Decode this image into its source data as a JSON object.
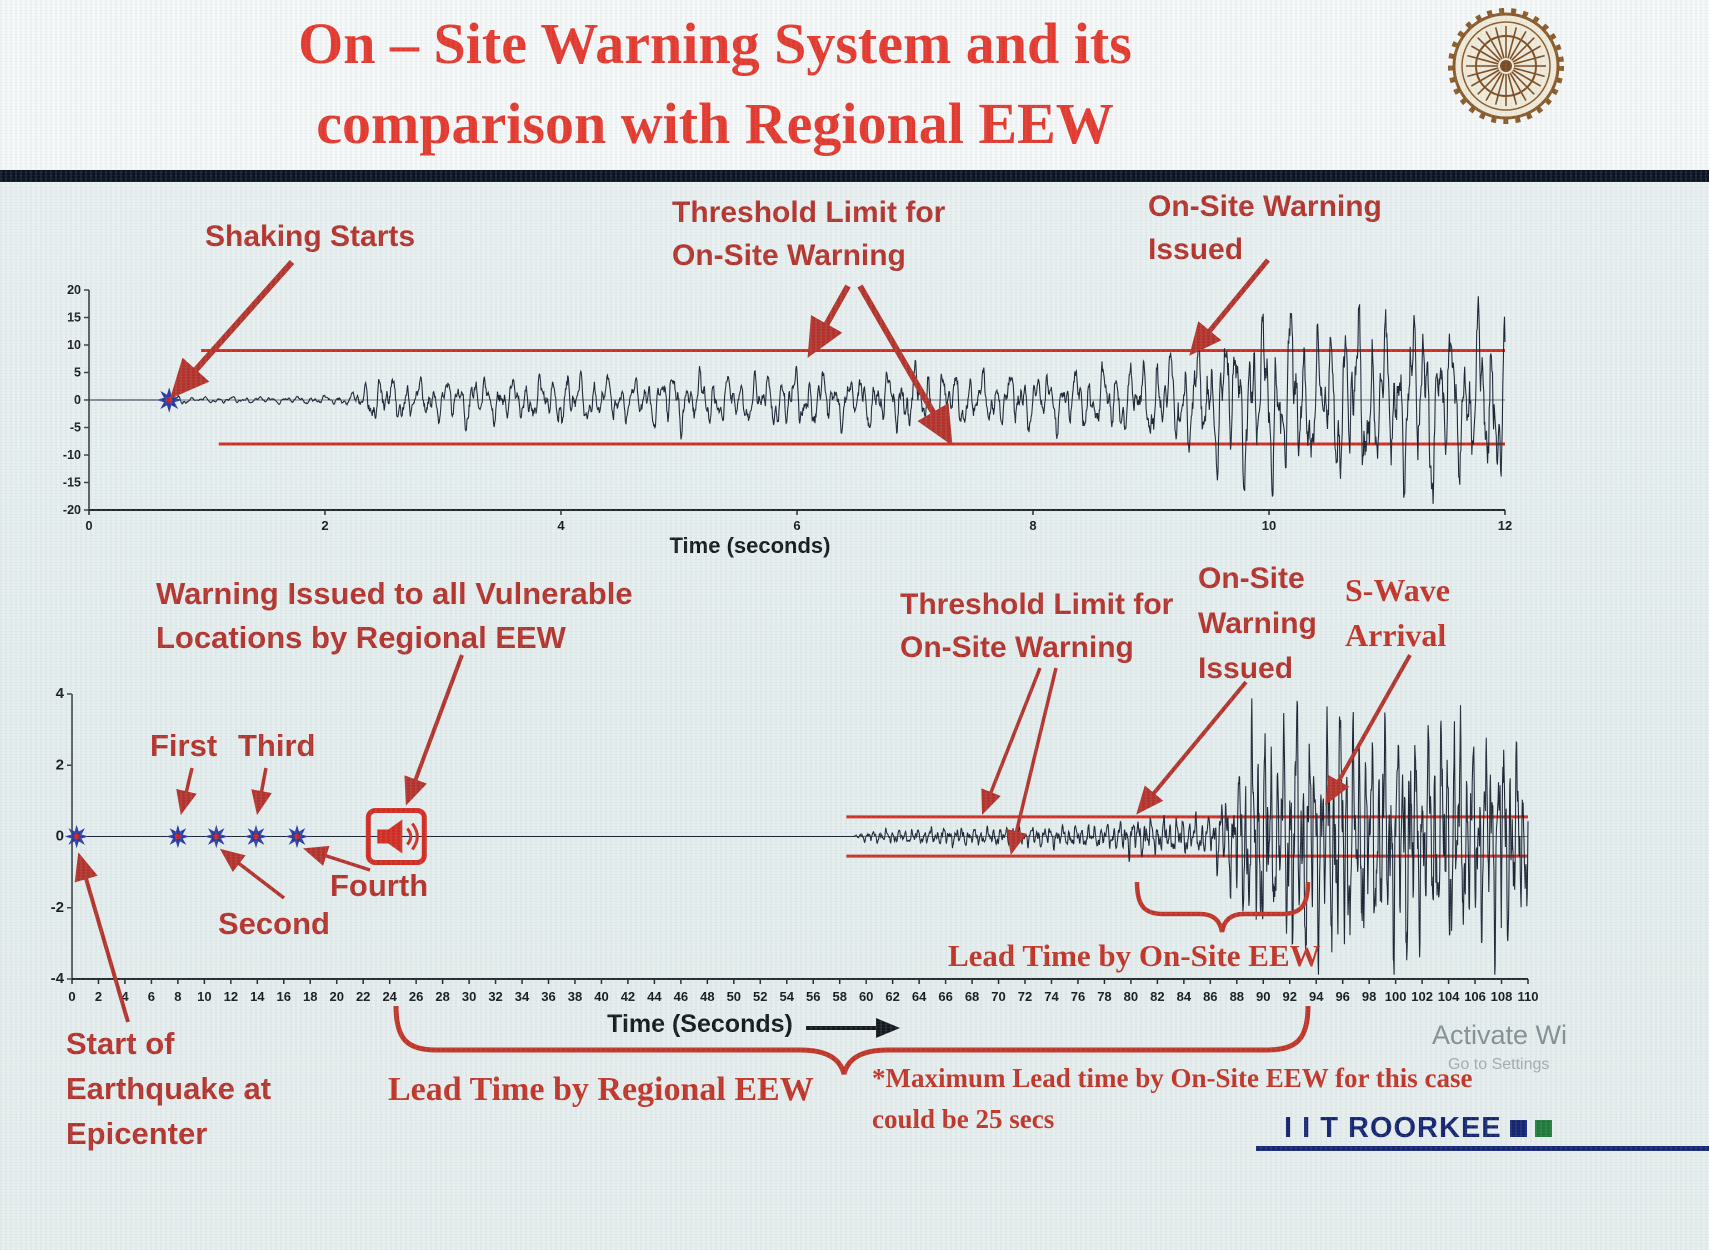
{
  "slide": {
    "title_line1": "On – Site Warning System and its",
    "title_line2": "comparison with Regional EEW",
    "brand": "I I T ROORKEE",
    "watermark_line1": "Activate Wi",
    "watermark_line2": "Go to Settings"
  },
  "annotations_top": {
    "shaking_starts": "Shaking Starts",
    "threshold_line1": "Threshold Limit for",
    "threshold_line2": "On-Site Warning",
    "warning_issued_line1": "On-Site Warning",
    "warning_issued_line2": "Issued"
  },
  "annotations_bottom": {
    "regional_warning_line1": "Warning Issued to all Vulnerable",
    "regional_warning_line2": "Locations by Regional EEW",
    "first": "First",
    "second": "Second",
    "third": "Third",
    "fourth": "Fourth",
    "threshold_line1": "Threshold Limit for",
    "threshold_line2": "On-Site Warning",
    "onsite_line1": "On-Site",
    "onsite_line2": "Warning",
    "onsite_line3": "Issued",
    "swave_line1": "S-Wave",
    "swave_line2": "Arrival",
    "lead_onsite": "Lead Time by On-Site EEW",
    "lead_regional": "Lead Time by Regional EEW",
    "max_lead_line1": "*Maximum Lead time by On-Site EEW for this case",
    "max_lead_line2": "could be 25 secs",
    "start_line1": "Start of",
    "start_line2": "Earthquake at",
    "start_line3": "Epicenter"
  },
  "colors": {
    "title_red": "#e5372b",
    "annotation_red": "#b5322a",
    "threshold_red": "#d42b20",
    "trace_navy": "#1b2433",
    "brand_navy": "#15246f",
    "brand_green": "#1f7a3a",
    "logo_brown": "#8a5a28"
  },
  "chart_data": [
    {
      "type": "line",
      "title": "",
      "xlabel": "Time (seconds)",
      "ylabel": "",
      "xlim": [
        0,
        12
      ],
      "ylim": [
        -20,
        20
      ],
      "xtick_step": 2,
      "ytick_step": 5,
      "grid": false,
      "legend": "none",
      "line_color": "#1b2433",
      "threshold_color": "#d42b20",
      "marker_color": "#2a3aa0",
      "marker_center_color": "#cc2020",
      "base_freq": 8.8,
      "samples": 2600,
      "seed": 42,
      "envelope": [
        [
          0,
          0
        ],
        [
          0.66,
          0
        ],
        [
          0.7,
          1.3
        ],
        [
          0.85,
          0.5
        ],
        [
          1.5,
          0.55
        ],
        [
          2.2,
          0.8
        ],
        [
          2.45,
          4.2
        ],
        [
          2.8,
          3.1
        ],
        [
          3.2,
          4.4
        ],
        [
          3.6,
          3.3
        ],
        [
          4.1,
          4.5
        ],
        [
          4.6,
          3.5
        ],
        [
          5,
          5
        ],
        [
          5.5,
          3.9
        ],
        [
          6,
          5.2
        ],
        [
          6.5,
          4.1
        ],
        [
          7,
          5.4
        ],
        [
          7.5,
          4.4
        ],
        [
          8,
          4.8
        ],
        [
          8.5,
          5.2
        ],
        [
          8.9,
          6.2
        ],
        [
          9.2,
          7.8
        ],
        [
          9.5,
          10.5
        ],
        [
          9.8,
          13.5
        ],
        [
          10.1,
          15.5
        ],
        [
          10.4,
          11
        ],
        [
          10.7,
          16
        ],
        [
          11,
          12.5
        ],
        [
          11.3,
          16.5
        ],
        [
          11.6,
          12
        ],
        [
          11.9,
          15.5
        ],
        [
          12,
          14
        ]
      ],
      "thresholds": [
        {
          "y": 9,
          "x0": 0.95,
          "x1": 12
        },
        {
          "y": -8,
          "x0": 1.1,
          "x1": 12
        }
      ],
      "markers": [
        {
          "x": 0.68,
          "y": 0,
          "size": 11,
          "meaning": "shaking starts (P-wave detection)"
        }
      ]
    },
    {
      "type": "line",
      "title": "",
      "xlabel": "Time (Seconds)",
      "ylabel": "",
      "xlim": [
        0,
        110
      ],
      "ylim": [
        -4,
        4
      ],
      "xtick_step": 2,
      "ytick_step": 2,
      "grid": false,
      "legend": "none",
      "line_color": "#1b2433",
      "threshold_color": "#d42b20",
      "marker_color": "#2a3aa0",
      "marker_center_color": "#cc2020",
      "base_freq": 2.1,
      "samples": 3600,
      "seed": 7,
      "envelope": [
        [
          0,
          0
        ],
        [
          59,
          0
        ],
        [
          60,
          0.15
        ],
        [
          66,
          0.22
        ],
        [
          72,
          0.25
        ],
        [
          78,
          0.3
        ],
        [
          80,
          0.5
        ],
        [
          82,
          0.45
        ],
        [
          84,
          0.5
        ],
        [
          86,
          0.55
        ],
        [
          88,
          1.6
        ],
        [
          89.5,
          3.2
        ],
        [
          91,
          2.3
        ],
        [
          92.5,
          3.5
        ],
        [
          94,
          2.7
        ],
        [
          96,
          3.3
        ],
        [
          98,
          2.5
        ],
        [
          100,
          3.2
        ],
        [
          102,
          2.6
        ],
        [
          104,
          3
        ],
        [
          106,
          2.4
        ],
        [
          108,
          2.9
        ],
        [
          110,
          2.1
        ]
      ],
      "thresholds": [
        {
          "y": 0.55,
          "x0": 58.5,
          "x1": 110
        },
        {
          "y": -0.55,
          "x0": 58.5,
          "x1": 110
        }
      ],
      "markers": [
        {
          "x": 0.35,
          "y": 0,
          "size": 10,
          "meaning": "start of earthquake at epicenter"
        },
        {
          "x": 8,
          "y": 0,
          "size": 10,
          "meaning": "first station P-wave detection"
        },
        {
          "x": 10.9,
          "y": 0,
          "size": 10,
          "meaning": "second station P-wave detection"
        },
        {
          "x": 13.9,
          "y": 0,
          "size": 10,
          "meaning": "third station P-wave detection"
        },
        {
          "x": 17,
          "y": 0,
          "size": 10,
          "meaning": "fourth station P-wave detection"
        }
      ],
      "siren": {
        "x": 24.5,
        "meaning": "regional EEW warning issued"
      }
    }
  ]
}
